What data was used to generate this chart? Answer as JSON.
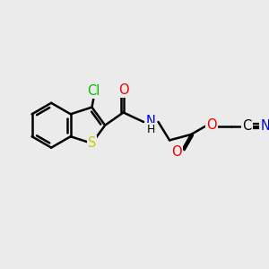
{
  "bg_color": "#ebebeb",
  "bond_color": "#000000",
  "bond_width": 1.8,
  "atoms": {
    "S": {
      "color": "#cccc00"
    },
    "N": {
      "color": "#0000ee"
    },
    "O": {
      "color": "#ee0000"
    },
    "Cl": {
      "color": "#00bb00"
    },
    "C": {
      "color": "#000000"
    },
    "N_triple": {
      "color": "#0000cc"
    }
  },
  "fontsize": 10.5
}
